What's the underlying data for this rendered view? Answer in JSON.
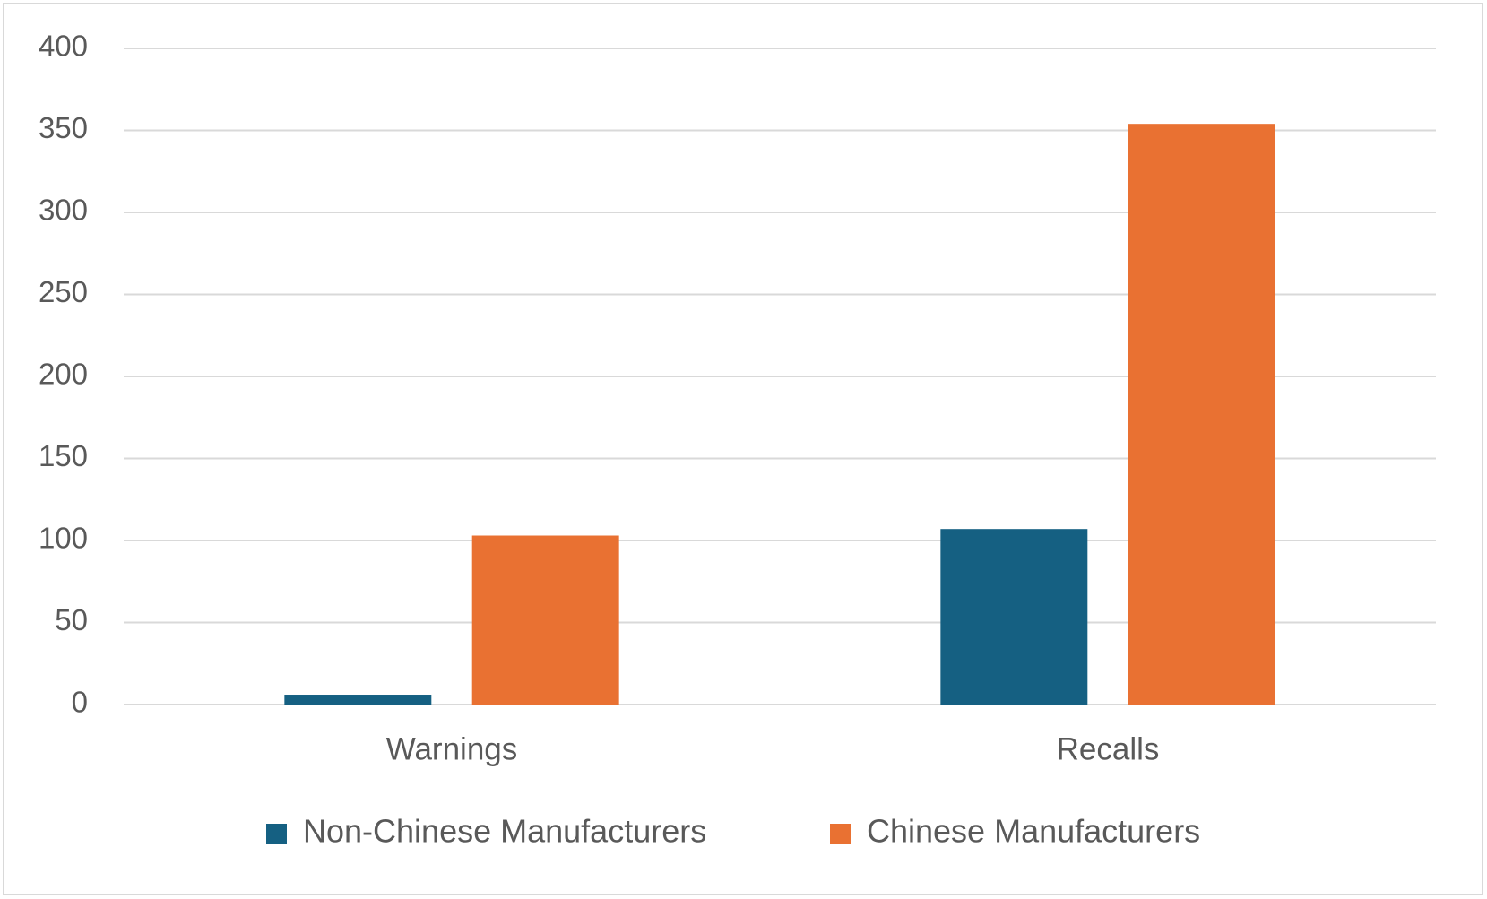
{
  "chart_data": {
    "type": "bar",
    "categories": [
      "Warnings",
      "Recalls"
    ],
    "series": [
      {
        "name": "Non-Chinese Manufacturers",
        "color": "#156082",
        "values": [
          6,
          107
        ]
      },
      {
        "name": "Chinese Manufacturers",
        "color": "#e97132",
        "values": [
          103,
          354
        ]
      }
    ],
    "ylim": [
      0,
      400
    ],
    "yticks": [
      0,
      50,
      100,
      150,
      200,
      250,
      300,
      350,
      400
    ],
    "grid": true,
    "legend": "bottom"
  }
}
